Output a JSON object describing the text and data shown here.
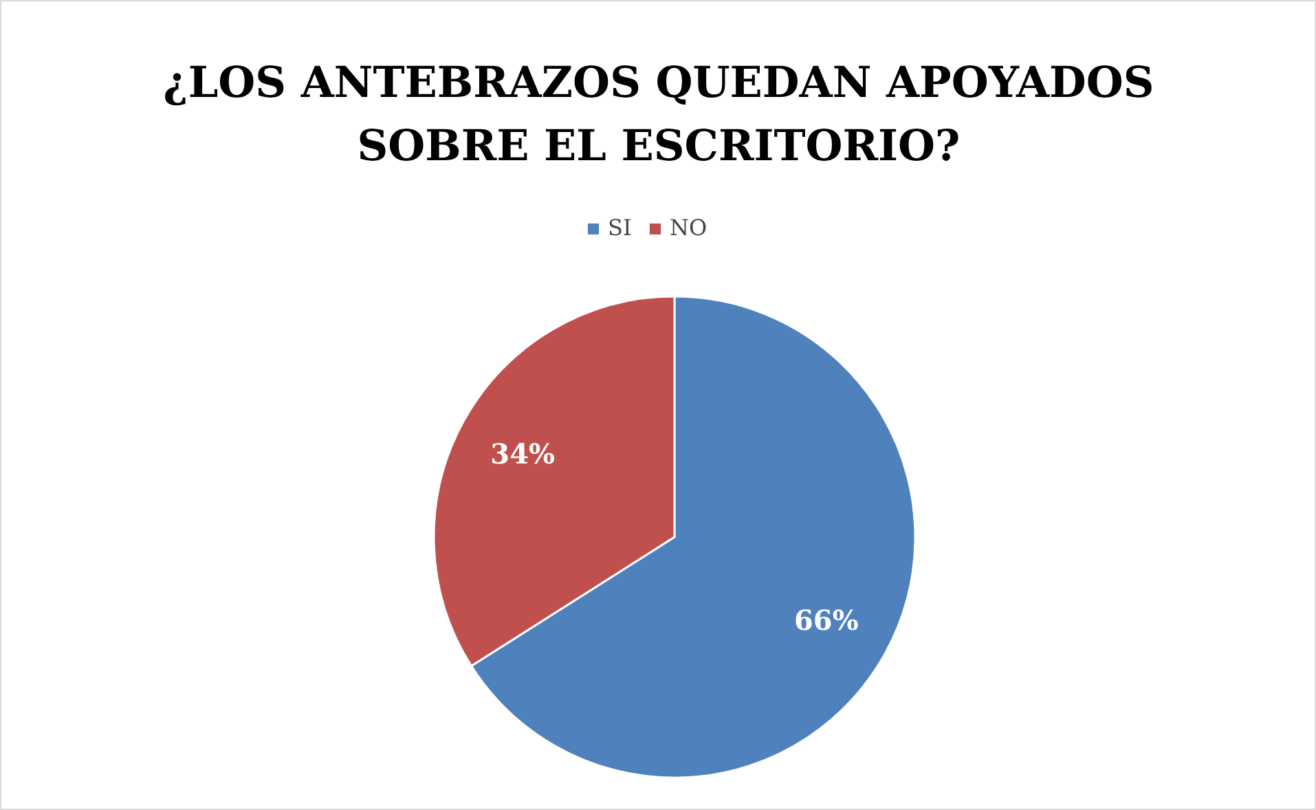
{
  "chart_data": {
    "type": "pie",
    "title": "¿LOS ANTEBRAZOS QUEDAN APOYADOS\nSOBRE EL ESCRITORIO?",
    "categories": [
      "SI",
      "NO"
    ],
    "values": [
      66,
      34
    ],
    "colors": [
      "#4f81bd",
      "#c0504d"
    ],
    "value_labels": [
      "66%",
      "34%"
    ],
    "legend": "top"
  }
}
